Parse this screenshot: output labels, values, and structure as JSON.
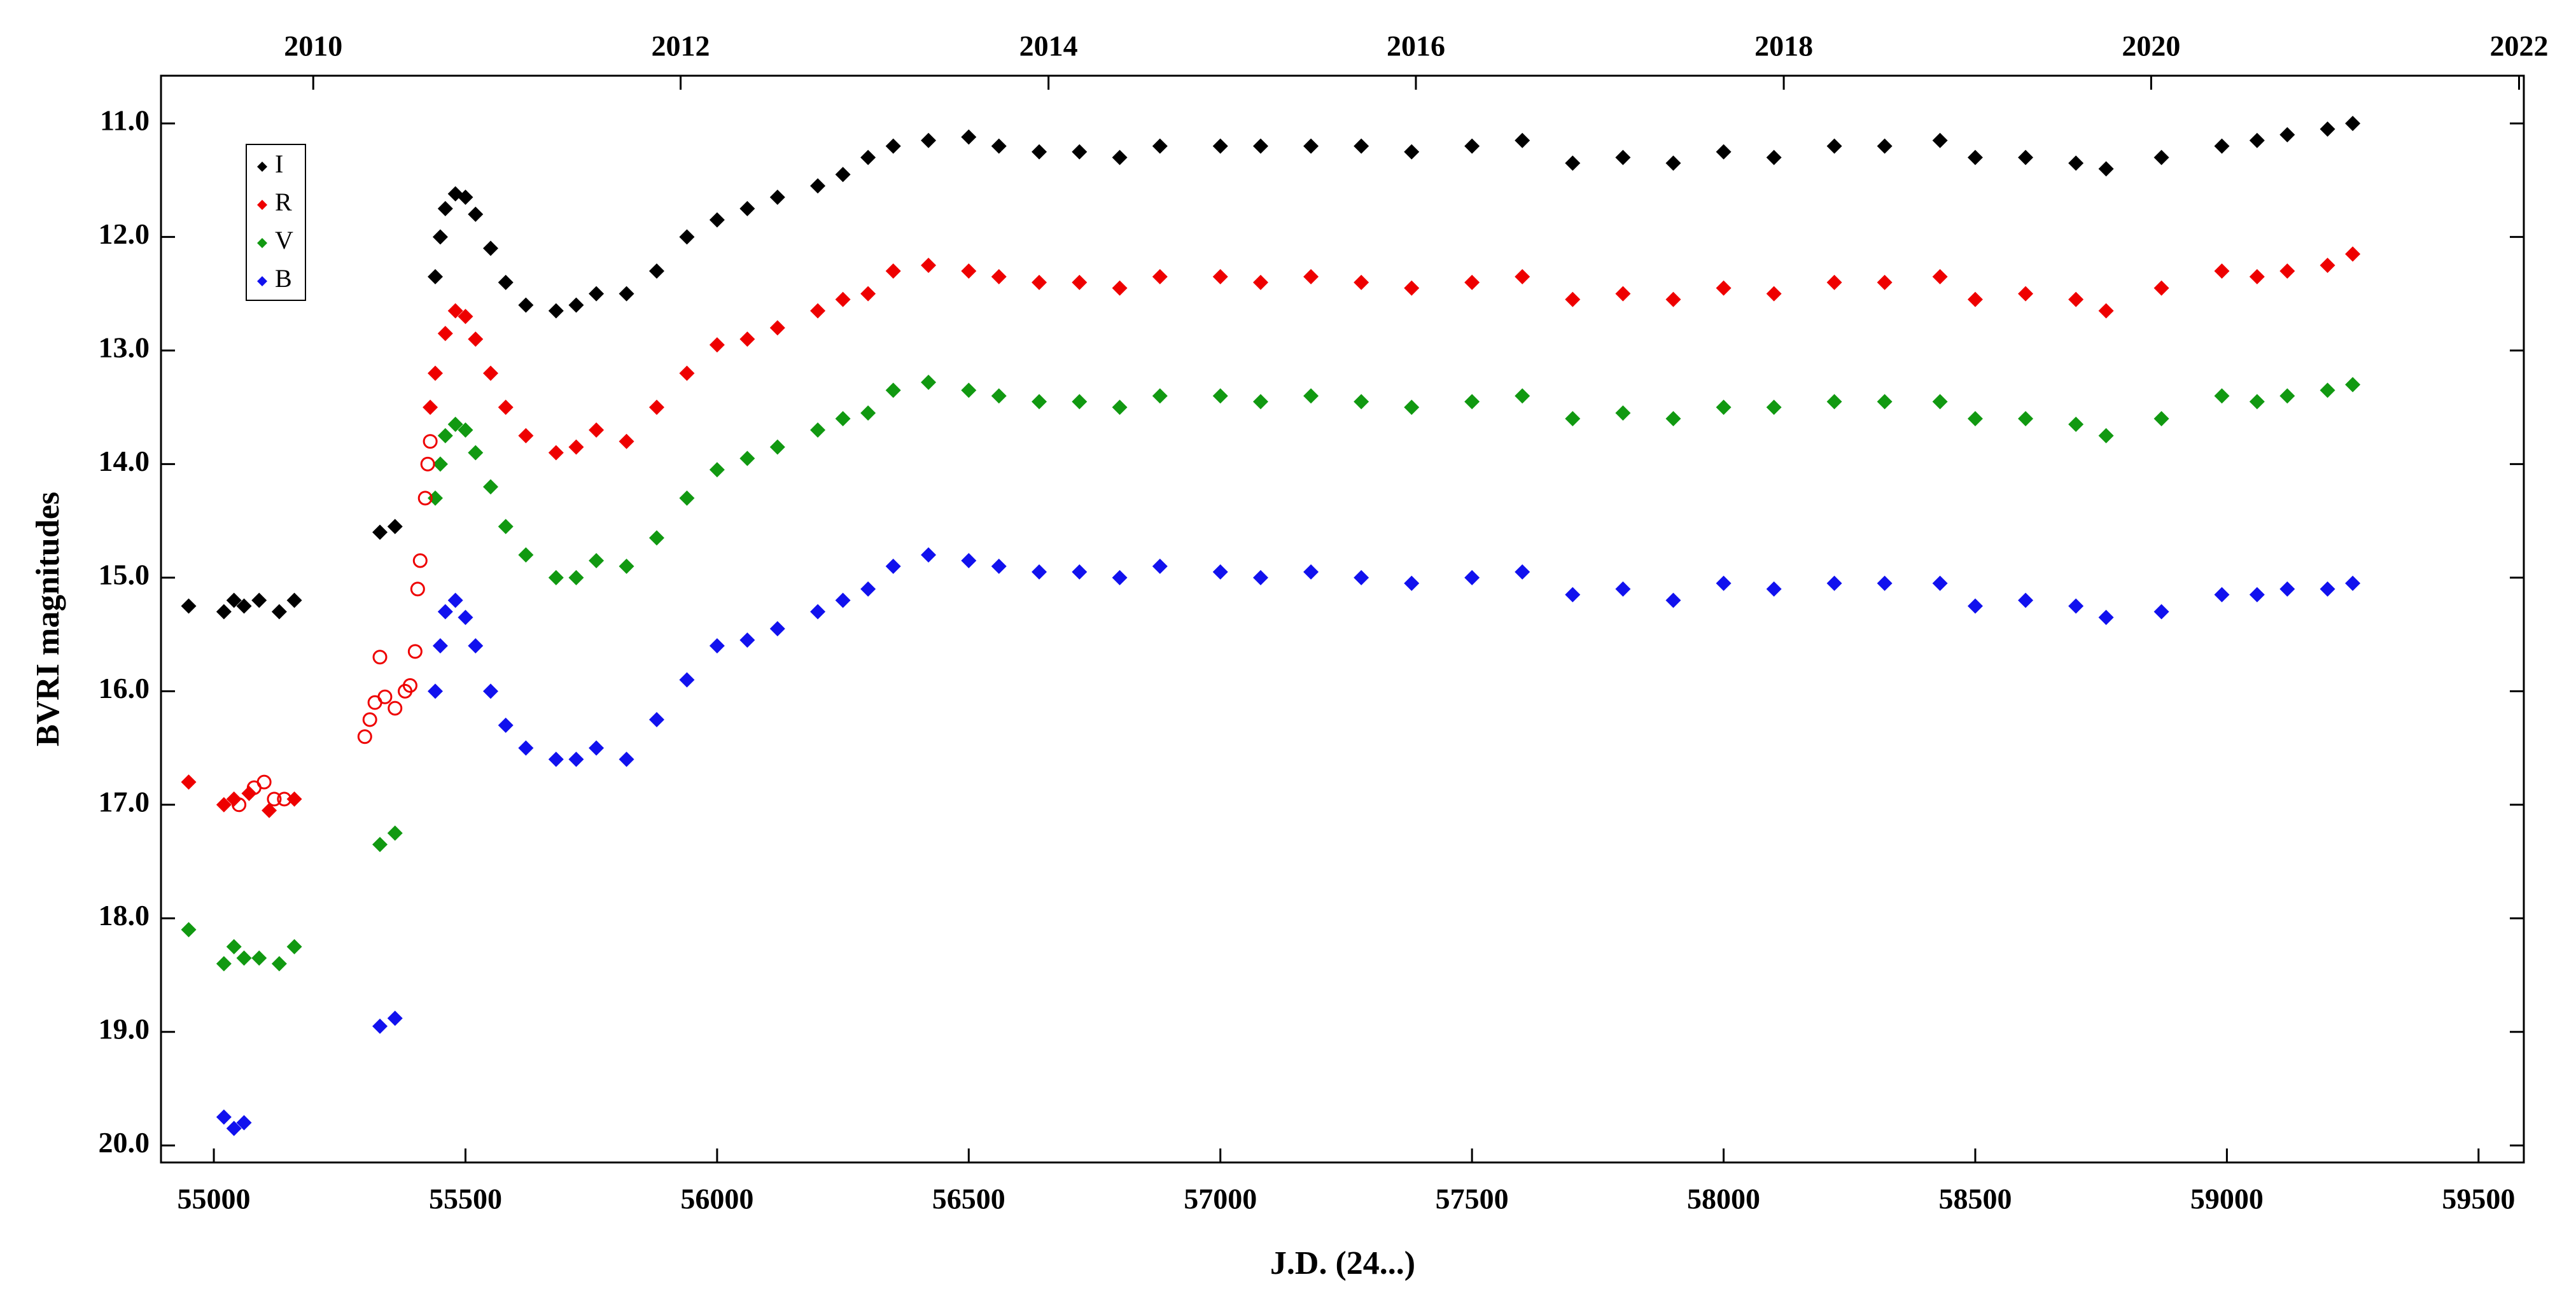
{
  "chart_data": {
    "type": "scatter",
    "xlabel": "J.D. (24...)",
    "ylabel": "BVRI magnitudes",
    "xlim": [
      54895,
      59590
    ],
    "ylim": [
      10.58,
      20.15
    ],
    "y_inverted": true,
    "xticks": [
      55000,
      55500,
      56000,
      56500,
      57000,
      57500,
      58000,
      58500,
      59000,
      59500
    ],
    "yticks": [
      {
        "value": 11,
        "label": "11.0"
      },
      {
        "value": 12,
        "label": "12.0"
      },
      {
        "value": 13,
        "label": "13.0"
      },
      {
        "value": 14,
        "label": "14.0"
      },
      {
        "value": 15,
        "label": "15.0"
      },
      {
        "value": 16,
        "label": "16.0"
      },
      {
        "value": 17,
        "label": "17.0"
      },
      {
        "value": 18,
        "label": "18.0"
      },
      {
        "value": 19,
        "label": "19.0"
      },
      {
        "value": 20,
        "label": "20.0"
      }
    ],
    "x2ticks": [
      {
        "value": 55197.5,
        "label": "2010"
      },
      {
        "value": 55927.5,
        "label": "2012"
      },
      {
        "value": 56658.5,
        "label": "2014"
      },
      {
        "value": 57388.5,
        "label": "2016"
      },
      {
        "value": 58119.5,
        "label": "2018"
      },
      {
        "value": 58849.5,
        "label": "2020"
      },
      {
        "value": 59580.5,
        "label": "2022"
      }
    ],
    "legend_position": "upper left",
    "series": [
      {
        "name": "I",
        "color": "#000000",
        "marker": "diamond",
        "x": [
          54950,
          55020,
          55040,
          55060,
          55090,
          55130,
          55160,
          55330,
          55360,
          55440,
          55450,
          55460,
          55480,
          55500,
          55520,
          55550,
          55580,
          55620,
          55680,
          55720,
          55760,
          55820,
          55880,
          55940,
          56000,
          56060,
          56120,
          56200,
          56250,
          56300,
          56350,
          56420,
          56500,
          56560,
          56640,
          56720,
          56800,
          56880,
          57000,
          57080,
          57180,
          57280,
          57380,
          57500,
          57600,
          57700,
          57800,
          57900,
          58000,
          58100,
          58220,
          58320,
          58430,
          58500,
          58600,
          58700,
          58760,
          58870,
          58990,
          59060,
          59120,
          59200,
          59250
        ],
        "values": [
          15.25,
          15.3,
          15.2,
          15.25,
          15.2,
          15.3,
          15.2,
          14.6,
          14.55,
          12.35,
          12.0,
          11.75,
          11.62,
          11.65,
          11.8,
          12.1,
          12.4,
          12.6,
          12.65,
          12.6,
          12.5,
          12.5,
          12.3,
          12.0,
          11.85,
          11.75,
          11.65,
          11.55,
          11.45,
          11.3,
          11.2,
          11.15,
          11.12,
          11.2,
          11.25,
          11.25,
          11.3,
          11.2,
          11.2,
          11.2,
          11.2,
          11.2,
          11.25,
          11.2,
          11.15,
          11.35,
          11.3,
          11.35,
          11.25,
          11.3,
          11.2,
          11.2,
          11.15,
          11.3,
          11.3,
          11.35,
          11.4,
          11.3,
          11.2,
          11.15,
          11.1,
          11.05,
          11.0
        ]
      },
      {
        "name": "R",
        "color": "#ee0000",
        "marker": "diamond",
        "x": [
          54950,
          55020,
          55040,
          55070,
          55110,
          55160,
          55430,
          55440,
          55460,
          55480,
          55500,
          55520,
          55550,
          55580,
          55620,
          55680,
          55720,
          55760,
          55820,
          55880,
          55940,
          56000,
          56060,
          56120,
          56200,
          56250,
          56300,
          56350,
          56420,
          56500,
          56560,
          56640,
          56720,
          56800,
          56880,
          57000,
          57080,
          57180,
          57280,
          57380,
          57500,
          57600,
          57700,
          57800,
          57900,
          58000,
          58100,
          58220,
          58320,
          58430,
          58500,
          58600,
          58700,
          58760,
          58870,
          58990,
          59060,
          59120,
          59200,
          59250
        ],
        "values": [
          16.8,
          17.0,
          16.95,
          16.9,
          17.05,
          16.95,
          13.5,
          13.2,
          12.85,
          12.65,
          12.7,
          12.9,
          13.2,
          13.5,
          13.75,
          13.9,
          13.85,
          13.7,
          13.8,
          13.5,
          13.2,
          12.95,
          12.9,
          12.8,
          12.65,
          12.55,
          12.5,
          12.3,
          12.25,
          12.3,
          12.35,
          12.4,
          12.4,
          12.45,
          12.35,
          12.35,
          12.4,
          12.35,
          12.4,
          12.45,
          12.4,
          12.35,
          12.55,
          12.5,
          12.55,
          12.45,
          12.5,
          12.4,
          12.4,
          12.35,
          12.55,
          12.5,
          12.55,
          12.65,
          12.45,
          12.3,
          12.35,
          12.3,
          12.25,
          12.15
        ]
      },
      {
        "name": "V",
        "color": "#119911",
        "marker": "diamond",
        "x": [
          54950,
          55020,
          55040,
          55060,
          55090,
          55130,
          55160,
          55330,
          55360,
          55440,
          55450,
          55460,
          55480,
          55500,
          55520,
          55550,
          55580,
          55620,
          55680,
          55720,
          55760,
          55820,
          55880,
          55940,
          56000,
          56060,
          56120,
          56200,
          56250,
          56300,
          56350,
          56420,
          56500,
          56560,
          56640,
          56720,
          56800,
          56880,
          57000,
          57080,
          57180,
          57280,
          57380,
          57500,
          57600,
          57700,
          57800,
          57900,
          58000,
          58100,
          58220,
          58320,
          58430,
          58500,
          58600,
          58700,
          58760,
          58870,
          58990,
          59060,
          59120,
          59200,
          59250
        ],
        "values": [
          18.1,
          18.4,
          18.25,
          18.35,
          18.35,
          18.4,
          18.25,
          17.35,
          17.25,
          14.3,
          14.0,
          13.75,
          13.65,
          13.7,
          13.9,
          14.2,
          14.55,
          14.8,
          15.0,
          15.0,
          14.85,
          14.9,
          14.65,
          14.3,
          14.05,
          13.95,
          13.85,
          13.7,
          13.6,
          13.55,
          13.35,
          13.28,
          13.35,
          13.4,
          13.45,
          13.45,
          13.5,
          13.4,
          13.4,
          13.45,
          13.4,
          13.45,
          13.5,
          13.45,
          13.4,
          13.6,
          13.55,
          13.6,
          13.5,
          13.5,
          13.45,
          13.45,
          13.45,
          13.6,
          13.6,
          13.65,
          13.75,
          13.6,
          13.4,
          13.45,
          13.4,
          13.35,
          13.3
        ]
      },
      {
        "name": "B",
        "color": "#1111ee",
        "marker": "diamond",
        "x": [
          55020,
          55040,
          55060,
          55330,
          55360,
          55440,
          55450,
          55460,
          55480,
          55500,
          55520,
          55550,
          55580,
          55620,
          55680,
          55720,
          55760,
          55820,
          55880,
          55940,
          56000,
          56060,
          56120,
          56200,
          56250,
          56300,
          56350,
          56420,
          56500,
          56560,
          56640,
          56720,
          56800,
          56880,
          57000,
          57080,
          57180,
          57280,
          57380,
          57500,
          57600,
          57700,
          57800,
          57900,
          58000,
          58100,
          58220,
          58320,
          58430,
          58500,
          58600,
          58700,
          58760,
          58870,
          58990,
          59060,
          59120,
          59200,
          59250
        ],
        "values": [
          19.75,
          19.85,
          19.8,
          18.95,
          18.88,
          16.0,
          15.6,
          15.3,
          15.2,
          15.35,
          15.6,
          16.0,
          16.3,
          16.5,
          16.6,
          16.6,
          16.5,
          16.6,
          16.25,
          15.9,
          15.6,
          15.55,
          15.45,
          15.3,
          15.2,
          15.1,
          14.9,
          14.8,
          14.85,
          14.9,
          14.95,
          14.95,
          15.0,
          14.9,
          14.95,
          15.0,
          14.95,
          15.0,
          15.05,
          15.0,
          14.95,
          15.15,
          15.1,
          15.2,
          15.05,
          15.1,
          15.05,
          15.05,
          15.05,
          15.25,
          15.2,
          15.25,
          15.35,
          15.3,
          15.15,
          15.15,
          15.1,
          15.1,
          15.05
        ]
      },
      {
        "color": "#ee0000",
        "marker": "open-circle",
        "x": [
          55050,
          55080,
          55100,
          55120,
          55140,
          55300,
          55310,
          55320,
          55330,
          55340,
          55360,
          55380,
          55390,
          55400,
          55405,
          55410,
          55420,
          55425,
          55430
        ],
        "values": [
          17.0,
          16.85,
          16.8,
          16.95,
          16.95,
          16.4,
          16.25,
          16.1,
          15.7,
          16.05,
          16.15,
          16.0,
          15.95,
          15.65,
          15.1,
          14.85,
          14.3,
          14.0,
          13.8
        ]
      }
    ]
  }
}
